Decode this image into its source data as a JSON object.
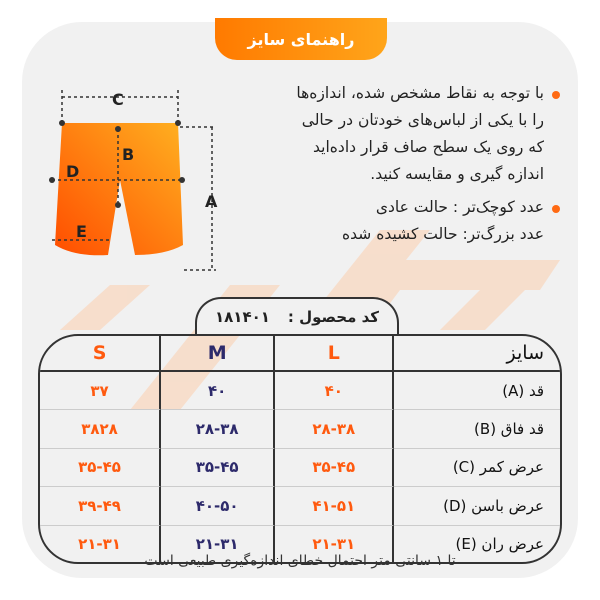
{
  "title": "راهنمای سایز",
  "bullets": [
    {
      "lines": [
        "با توجه به نقاط مشخص شده، اندازه‌ها",
        "را با یکی از لباس‌های خودتان در حالی",
        "که روی یک سطح صاف قرار داده‌اید",
        "اندازه گیری و مقایسه کنید."
      ]
    },
    {
      "lines": [
        "عدد کوچک‌تر : حالت عادی",
        "عدد بزرگ‌تر: حالت کشیده شده"
      ]
    }
  ],
  "diagram": {
    "labels": {
      "a": "A",
      "b": "B",
      "c": "C",
      "d": "D",
      "e": "E"
    }
  },
  "product_code": {
    "label": "کد محصول :",
    "value": "۱۸۱۴۰۱"
  },
  "table": {
    "header": {
      "label": "سایز",
      "sizes": [
        "L",
        "M",
        "S"
      ]
    },
    "rows": [
      {
        "label": "قد (A)",
        "values": [
          "۴۰",
          "۴۰",
          "۳۷"
        ]
      },
      {
        "label": "قد فاق (B)",
        "values": [
          "۲۸-۳۸",
          "۲۸-۳۸",
          "۳۸۲۸"
        ]
      },
      {
        "label": "عرض کمر (C)",
        "values": [
          "۳۵-۴۵",
          "۳۵-۴۵",
          "۳۵-۴۵"
        ]
      },
      {
        "label": "عرض باسن (D)",
        "values": [
          "۴۱-۵۱",
          "۴۰-۵۰",
          "۳۹-۴۹"
        ]
      },
      {
        "label": "عرض ران (E)",
        "values": [
          "۲۱-۳۱",
          "۲۱-۳۱",
          "۲۱-۳۱"
        ]
      }
    ]
  },
  "footer": "تا ۱ سانتی متر احتمال خطای اندازه‌گیری طبیعی است",
  "colors": {
    "accent": "#ff6a13",
    "navy": "#2d2a6b",
    "card": "#f1f1f1"
  }
}
